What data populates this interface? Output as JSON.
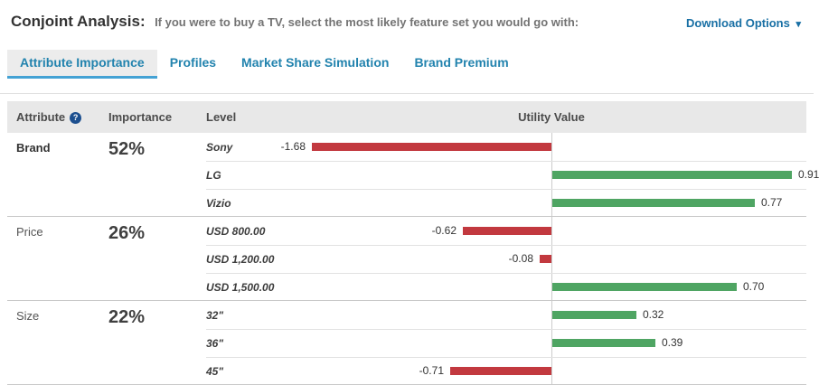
{
  "header": {
    "title": "Conjoint Analysis:",
    "subtitle": "If you were to buy a TV, select the most likely feature set you would go with:",
    "download_label": "Download Options"
  },
  "icons": {
    "caret_down": "▾",
    "help": "?"
  },
  "tabs": [
    {
      "label": "Attribute Importance",
      "active": true
    },
    {
      "label": "Profiles",
      "active": false
    },
    {
      "label": "Market Share Simulation",
      "active": false
    },
    {
      "label": "Brand Premium",
      "active": false
    }
  ],
  "table": {
    "columns": {
      "attribute": "Attribute",
      "importance": "Importance",
      "level": "Level",
      "utility": "Utility Value"
    }
  },
  "colors": {
    "negative_bar": "#c2393f",
    "positive_bar": "#4fa563",
    "active_tab_underline": "#44a2d4",
    "link_blue": "#186fa4"
  },
  "chart_data": {
    "type": "bar",
    "orientation": "horizontal",
    "xlabel": "Utility Value",
    "axis_zero_centered": true,
    "groups": [
      {
        "attribute": "Brand",
        "importance": "52%",
        "emphasized": true,
        "levels": [
          {
            "label": "Sony",
            "value": -1.68
          },
          {
            "label": "LG",
            "value": 0.91
          },
          {
            "label": "Vizio",
            "value": 0.77
          }
        ]
      },
      {
        "attribute": "Price",
        "importance": "26%",
        "emphasized": false,
        "levels": [
          {
            "label": "USD 800.00",
            "value": -0.62
          },
          {
            "label": "USD 1,200.00",
            "value": -0.08
          },
          {
            "label": "USD 1,500.00",
            "value": 0.7
          }
        ]
      },
      {
        "attribute": "Size",
        "importance": "22%",
        "emphasized": false,
        "levels": [
          {
            "label": "32\"",
            "value": 0.32
          },
          {
            "label": "36\"",
            "value": 0.39
          },
          {
            "label": "45\"",
            "value": -0.71
          }
        ]
      }
    ]
  }
}
